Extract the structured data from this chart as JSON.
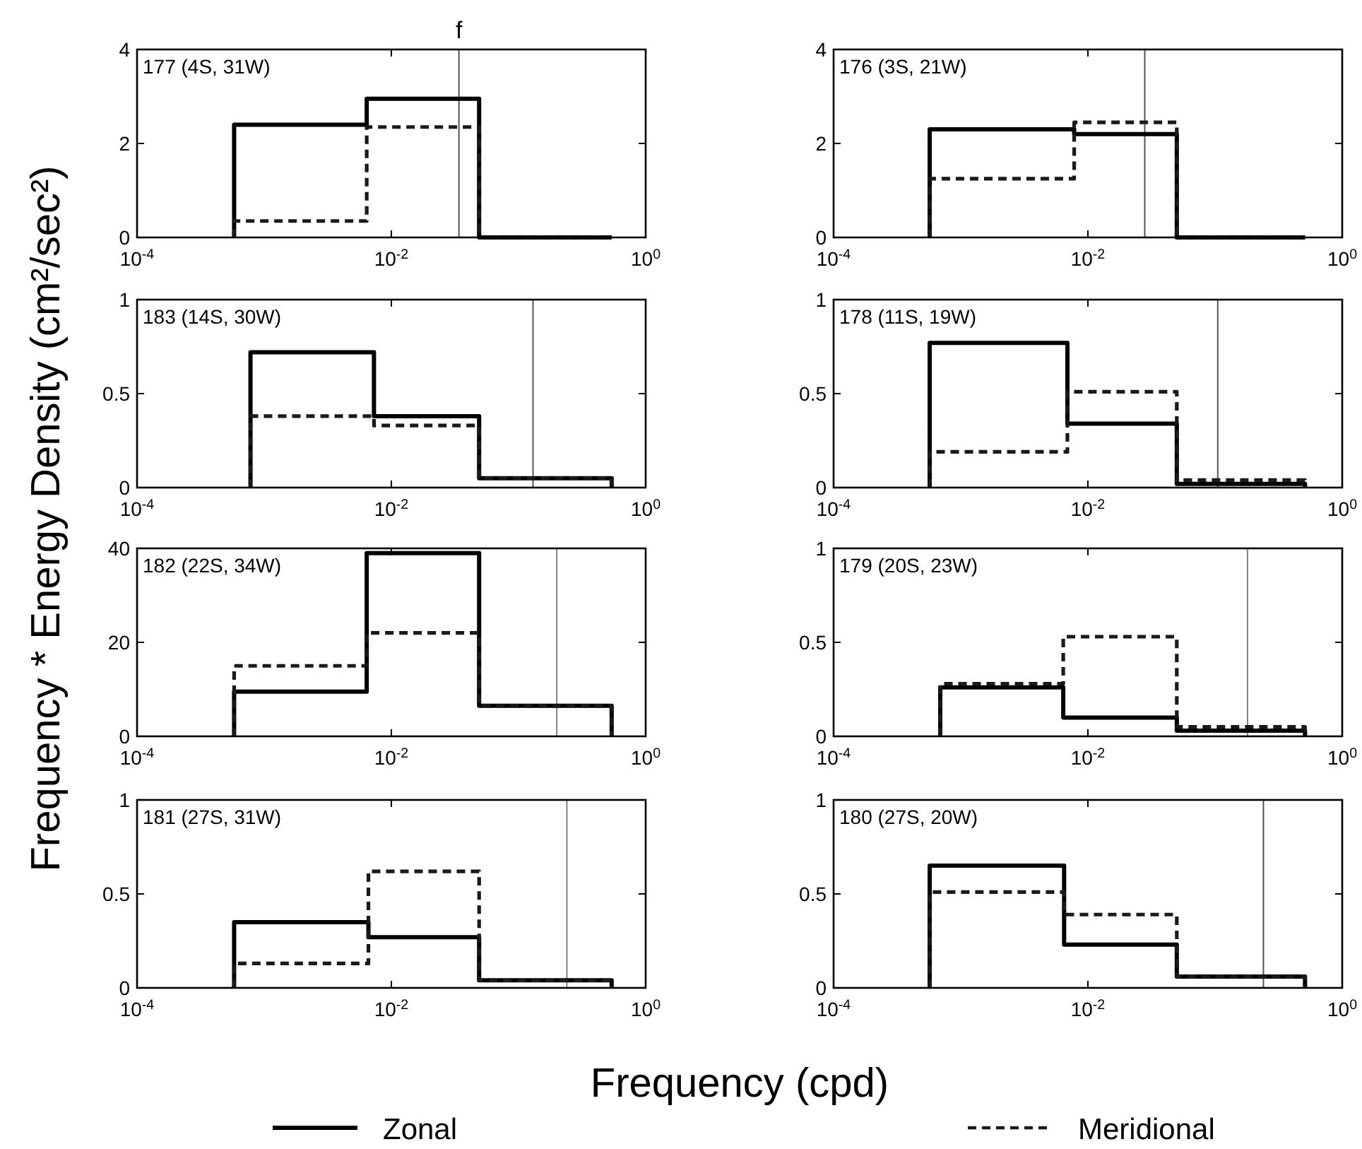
{
  "chart_data": [
    {
      "type": "histogram",
      "xlabel": "Frequency (cpd)",
      "ylabel": "Frequency * Energy Density (cm²/sec²)",
      "legend": "bottom",
      "log": "x",
      "xlim": [
        0.0001,
        1
      ],
      "xticks": [
        {
          "value": 0.0001,
          "label": "10$^{-4}$"
        },
        {
          "value": 0.01,
          "label": "10$^{-2}$"
        },
        {
          "value": 1,
          "label": "10$^{0}$"
        }
      ],
      "ylim": [
        0,
        4
      ],
      "yticks": [
        0,
        2,
        4
      ],
      "annotations": [
        "177 (4S, 31W)"
      ],
      "ref_lines": [
        {
          "axis": "x",
          "value": 0.034,
          "label": "f",
          "color": "#555555"
        }
      ],
      "bins": [
        0.00058,
        0.0064,
        0.049,
        0.54
      ],
      "series": [
        {
          "name": "Zonal",
          "color": "#000000",
          "line_style": "solid",
          "values": [
            2.4,
            2.95,
            0
          ]
        },
        {
          "name": "Meridional",
          "color": "#1a1a1a",
          "line_style": "dashed",
          "values": [
            0.35,
            2.35,
            0
          ]
        }
      ]
    },
    {
      "type": "histogram",
      "log": "x",
      "xlim": [
        0.0001,
        1
      ],
      "xticks": [
        {
          "value": 0.0001,
          "label": "10$^{-4}$"
        },
        {
          "value": 0.01,
          "label": "10$^{-2}$"
        },
        {
          "value": 1,
          "label": "10$^{0}$"
        }
      ],
      "ylim": [
        0,
        4
      ],
      "yticks": [
        0,
        2,
        4
      ],
      "annotations": [
        "176 (3S, 21W)"
      ],
      "ref_lines": [
        {
          "axis": "x",
          "value": 0.028,
          "color": "#555555"
        }
      ],
      "bins": [
        0.00057,
        0.0078,
        0.05,
        0.51
      ],
      "series": [
        {
          "color": "#000000",
          "line_style": "solid",
          "values": [
            2.3,
            2.2,
            0
          ]
        },
        {
          "color": "#1a1a1a",
          "line_style": "dashed",
          "values": [
            1.25,
            2.45,
            0
          ]
        }
      ]
    },
    {
      "type": "histogram",
      "log": "x",
      "xlim": [
        0.0001,
        1
      ],
      "xticks": [
        {
          "value": 0.0001,
          "label": "10$^{-4}$"
        },
        {
          "value": 0.01,
          "label": "10$^{-2}$"
        },
        {
          "value": 1,
          "label": "10$^{0}$"
        }
      ],
      "ylim": [
        0,
        1
      ],
      "yticks": [
        0,
        0.5,
        1
      ],
      "annotations": [
        "183 (14S, 30W)"
      ],
      "ref_lines": [
        {
          "axis": "x",
          "value": 0.13,
          "color": "#555555"
        }
      ],
      "bins": [
        0.00078,
        0.0073,
        0.049,
        0.54
      ],
      "series": [
        {
          "color": "#000000",
          "line_style": "solid",
          "values": [
            0.72,
            0.38,
            0.05
          ]
        },
        {
          "color": "#1a1a1a",
          "line_style": "dashed",
          "values": [
            0.38,
            0.33,
            0.05
          ]
        }
      ]
    },
    {
      "type": "histogram",
      "log": "x",
      "xlim": [
        0.0001,
        1
      ],
      "xticks": [
        {
          "value": 0.0001,
          "label": "10$^{-4}$"
        },
        {
          "value": 0.01,
          "label": "10$^{-2}$"
        },
        {
          "value": 1,
          "label": "10$^{0}$"
        }
      ],
      "ylim": [
        0,
        1
      ],
      "yticks": [
        0,
        0.5,
        1
      ],
      "annotations": [
        "178 (11S, 19W)"
      ],
      "ref_lines": [
        {
          "axis": "x",
          "value": 0.105,
          "color": "#555555"
        }
      ],
      "bins": [
        0.00057,
        0.0069,
        0.05,
        0.51
      ],
      "series": [
        {
          "color": "#000000",
          "line_style": "solid",
          "values": [
            0.77,
            0.34,
            0.02
          ]
        },
        {
          "color": "#1a1a1a",
          "line_style": "dashed",
          "values": [
            0.19,
            0.51,
            0.04
          ]
        }
      ]
    },
    {
      "type": "histogram",
      "log": "x",
      "xlim": [
        0.0001,
        1
      ],
      "xticks": [
        {
          "value": 0.0001,
          "label": "10$^{-4}$"
        },
        {
          "value": 0.01,
          "label": "10$^{-2}$"
        },
        {
          "value": 1,
          "label": "10$^{0}$"
        }
      ],
      "ylim": [
        0,
        40
      ],
      "yticks": [
        0,
        20,
        40
      ],
      "annotations": [
        "182 (22S, 34W)"
      ],
      "ref_lines": [
        {
          "axis": "x",
          "value": 0.2,
          "color": "#808080"
        }
      ],
      "bins": [
        0.00058,
        0.0064,
        0.049,
        0.54
      ],
      "series": [
        {
          "color": "#000000",
          "line_style": "solid",
          "values": [
            9.5,
            39,
            6.5
          ]
        },
        {
          "color": "#1a1a1a",
          "line_style": "dashed",
          "values": [
            15,
            22,
            6.5
          ]
        }
      ]
    },
    {
      "type": "histogram",
      "log": "x",
      "xlim": [
        0.0001,
        1
      ],
      "xticks": [
        {
          "value": 0.0001,
          "label": "10$^{-4}$"
        },
        {
          "value": 0.01,
          "label": "10$^{-2}$"
        },
        {
          "value": 1,
          "label": "10$^{0}$"
        }
      ],
      "ylim": [
        0,
        1
      ],
      "yticks": [
        0,
        0.5,
        1
      ],
      "annotations": [
        "179 (20S, 23W)"
      ],
      "ref_lines": [
        {
          "axis": "x",
          "value": 0.18,
          "color": "#808080"
        }
      ],
      "bins": [
        0.00069,
        0.0064,
        0.05,
        0.51
      ],
      "series": [
        {
          "color": "#000000",
          "line_style": "solid",
          "values": [
            0.26,
            0.1,
            0.03
          ]
        },
        {
          "color": "#1a1a1a",
          "line_style": "dashed",
          "values": [
            0.28,
            0.53,
            0.05
          ]
        }
      ]
    },
    {
      "type": "histogram",
      "log": "x",
      "xlim": [
        0.0001,
        1
      ],
      "xticks": [
        {
          "value": 0.0001,
          "label": "10$^{-4}$"
        },
        {
          "value": 0.01,
          "label": "10$^{-2}$"
        },
        {
          "value": 1,
          "label": "10$^{0}$"
        }
      ],
      "ylim": [
        0,
        1
      ],
      "yticks": [
        0,
        0.5,
        1
      ],
      "annotations": [
        "181 (27S, 31W)"
      ],
      "ref_lines": [
        {
          "axis": "x",
          "value": 0.24,
          "color": "#808080"
        }
      ],
      "bins": [
        0.00058,
        0.0066,
        0.049,
        0.54
      ],
      "series": [
        {
          "color": "#000000",
          "line_style": "solid",
          "values": [
            0.35,
            0.27,
            0.04
          ]
        },
        {
          "color": "#1a1a1a",
          "line_style": "dashed",
          "values": [
            0.13,
            0.62,
            0.04
          ]
        }
      ]
    },
    {
      "type": "histogram",
      "log": "x",
      "xlim": [
        0.0001,
        1
      ],
      "xticks": [
        {
          "value": 0.0001,
          "label": "10$^{-4}$"
        },
        {
          "value": 0.01,
          "label": "10$^{-2}$"
        },
        {
          "value": 1,
          "label": "10$^{0}$"
        }
      ],
      "ylim": [
        0,
        1
      ],
      "yticks": [
        0,
        0.5,
        1
      ],
      "annotations": [
        "180 (27S, 20W)"
      ],
      "ref_lines": [
        {
          "axis": "x",
          "value": 0.24,
          "color": "#555555"
        }
      ],
      "bins": [
        0.00057,
        0.0065,
        0.05,
        0.51
      ],
      "series": [
        {
          "color": "#000000",
          "line_style": "solid",
          "values": [
            0.65,
            0.23,
            0.06
          ]
        },
        {
          "color": "#1a1a1a",
          "line_style": "dashed",
          "values": [
            0.51,
            0.39,
            0.06
          ]
        }
      ]
    }
  ]
}
